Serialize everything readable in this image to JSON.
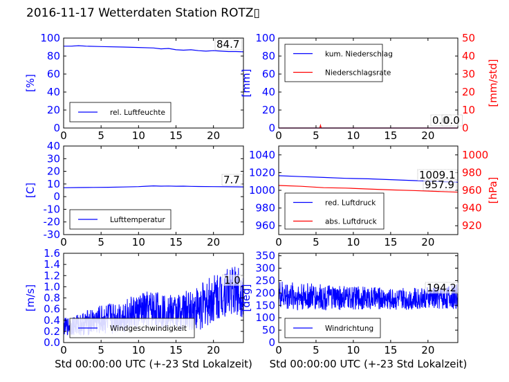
{
  "title": "2016-11-17 Wetterdaten Station ROTZ▯",
  "colors": {
    "left_axis": "#0000ff",
    "right_axis": "#ff0000",
    "frame": "#000000"
  },
  "chart_data": [
    {
      "id": "humidity",
      "type": "line",
      "xlim": [
        0,
        24
      ],
      "xticks": [
        0,
        5,
        10,
        15,
        20
      ],
      "ylim": [
        0,
        100
      ],
      "yticks": [
        0,
        20,
        40,
        60,
        80,
        100
      ],
      "ylabel": "[%]",
      "xlabel": "",
      "legend": "bottom-left",
      "series": [
        {
          "name": "rel. Luftfeuchte",
          "color": "#0000ff",
          "axis": "left",
          "kind": "smooth",
          "x": [
            0,
            1,
            2,
            3,
            5,
            8,
            10,
            12,
            13,
            14,
            15,
            16,
            17,
            18,
            19,
            20,
            21,
            22,
            23,
            24
          ],
          "y": [
            91,
            91,
            91.5,
            91,
            90.5,
            90,
            89.5,
            89,
            88,
            88.5,
            87,
            86.5,
            87,
            86,
            85.5,
            86,
            85.5,
            85,
            85,
            84.7
          ]
        }
      ],
      "end_labels": [
        {
          "text": "84.7",
          "value": 84.7,
          "axis": "left"
        }
      ]
    },
    {
      "id": "precipitation",
      "type": "line",
      "xlim": [
        0,
        24
      ],
      "xticks": [
        0,
        5,
        10,
        15,
        20
      ],
      "ylim": [
        0,
        100
      ],
      "yticks": [
        0,
        20,
        40,
        60,
        80,
        100
      ],
      "ylabel": "[mm]",
      "y2lim": [
        0,
        50
      ],
      "y2ticks": [
        0,
        10,
        20,
        30,
        40,
        50
      ],
      "y2label": "[mm/std]",
      "xlabel": "",
      "legend": "top-left",
      "series": [
        {
          "name": "kum. Niederschlag",
          "color": "#0000ff",
          "axis": "left",
          "kind": "smooth",
          "x": [
            0,
            24
          ],
          "y": [
            0,
            0
          ]
        },
        {
          "name": "Niederschlagsrate",
          "color": "#ff0000",
          "axis": "right",
          "kind": "smooth",
          "x": [
            0,
            5.5,
            5.6,
            5.7,
            5.8,
            24
          ],
          "y": [
            0,
            0,
            1.5,
            0,
            0,
            0
          ]
        }
      ],
      "end_labels": [
        {
          "text": "0.0",
          "value": 0,
          "axis": "left"
        },
        {
          "text": "0.0",
          "value": 0,
          "axis": "right"
        }
      ]
    },
    {
      "id": "temperature",
      "type": "line",
      "xlim": [
        0,
        24
      ],
      "xticks": [
        0,
        5,
        10,
        15,
        20
      ],
      "ylim": [
        -30,
        40
      ],
      "yticks": [
        -30,
        -20,
        -10,
        0,
        10,
        20,
        30,
        40
      ],
      "ylabel": "[C]",
      "xlabel": "",
      "legend": "bottom-left",
      "series": [
        {
          "name": "Lufttemperatur",
          "color": "#0000ff",
          "axis": "left",
          "kind": "smooth",
          "x": [
            0,
            2,
            4,
            6,
            8,
            10,
            11,
            12,
            13,
            14,
            15,
            16,
            17,
            18,
            20,
            22,
            24
          ],
          "y": [
            7.0,
            7.2,
            7.3,
            7.4,
            7.6,
            7.9,
            8.2,
            8.5,
            8.3,
            8.4,
            8.2,
            8.3,
            8.1,
            8.0,
            7.9,
            7.8,
            7.7
          ]
        }
      ],
      "end_labels": [
        {
          "text": "7.7",
          "value": 7.7,
          "axis": "left"
        }
      ]
    },
    {
      "id": "pressure",
      "type": "line",
      "xlim": [
        0,
        24
      ],
      "xticks": [
        0,
        5,
        10,
        15,
        20
      ],
      "ylim": [
        950,
        1050
      ],
      "yticks": [
        960,
        980,
        1000,
        1020,
        1040
      ],
      "ylabel": "",
      "y2lim": [
        910,
        1010
      ],
      "y2ticks": [
        920,
        940,
        960,
        980,
        1000
      ],
      "y2label": "[hPa]",
      "xlabel": "",
      "legend": "bottom-left",
      "series": [
        {
          "name": "red. Luftdruck",
          "color": "#0000ff",
          "axis": "left",
          "kind": "smooth",
          "x": [
            0,
            3,
            6,
            9,
            12,
            15,
            18,
            21,
            24
          ],
          "y": [
            1016.5,
            1015.5,
            1014.5,
            1013.5,
            1013,
            1012,
            1011,
            1010,
            1009.1
          ]
        },
        {
          "name": "abs. Luftdruck",
          "color": "#ff0000",
          "axis": "right",
          "kind": "smooth",
          "x": [
            0,
            3,
            6,
            9,
            12,
            15,
            18,
            21,
            24
          ],
          "y": [
            965.5,
            964.5,
            963,
            962.5,
            961.5,
            960.5,
            959.8,
            958.8,
            957.9
          ]
        }
      ],
      "end_labels": [
        {
          "text": "1009.1",
          "value": 1009.1,
          "axis": "left"
        },
        {
          "text": "957.9",
          "value": 957.9,
          "axis": "right"
        }
      ]
    },
    {
      "id": "windspeed",
      "type": "line",
      "xlim": [
        0,
        24
      ],
      "xticks": [
        0,
        5,
        10,
        15,
        20
      ],
      "ylim": [
        0,
        1.6
      ],
      "yticks": [
        0.0,
        0.2,
        0.4,
        0.6,
        0.8,
        1.0,
        1.2,
        1.4,
        1.6
      ],
      "ylabel": "[m/s]",
      "xlabel": "Std 00:00:00 UTC (+-23 Std Lokalzeit)",
      "legend": "bottom-left",
      "series": [
        {
          "name": "Windgeschwindigkeit",
          "color": "#0000ff",
          "axis": "left",
          "kind": "noisy",
          "x": [
            0,
            2,
            4,
            6,
            8,
            10,
            12,
            14,
            16,
            18,
            20,
            22,
            24
          ],
          "y": [
            0.28,
            0.32,
            0.38,
            0.42,
            0.48,
            0.55,
            0.6,
            0.55,
            0.55,
            0.62,
            0.78,
            0.95,
            0.9
          ],
          "spread": [
            0.15,
            0.2,
            0.25,
            0.3,
            0.3,
            0.32,
            0.35,
            0.3,
            0.35,
            0.42,
            0.45,
            0.45,
            0.45
          ]
        }
      ],
      "end_labels": [
        {
          "text": "1.0",
          "value": 1.0,
          "axis": "left"
        }
      ]
    },
    {
      "id": "winddirection",
      "type": "line",
      "xlim": [
        0,
        24
      ],
      "xticks": [
        0,
        5,
        10,
        15,
        20
      ],
      "ylim": [
        0,
        360
      ],
      "yticks": [
        0,
        50,
        100,
        150,
        200,
        250,
        300,
        350
      ],
      "ylabel": "[deg]",
      "xlabel": "Std 00:00:00 UTC (+-23 Std Lokalzeit)",
      "legend": "bottom-left",
      "series": [
        {
          "name": "Windrichtung",
          "color": "#0000ff",
          "axis": "left",
          "kind": "noisy",
          "x": [
            0,
            4,
            8,
            12,
            16,
            20,
            24
          ],
          "y": [
            190,
            185,
            180,
            180,
            175,
            180,
            185
          ],
          "spread": [
            60,
            55,
            50,
            45,
            45,
            45,
            50
          ]
        }
      ],
      "end_labels": [
        {
          "text": "194.2",
          "value": 194.2,
          "axis": "left"
        }
      ]
    }
  ]
}
